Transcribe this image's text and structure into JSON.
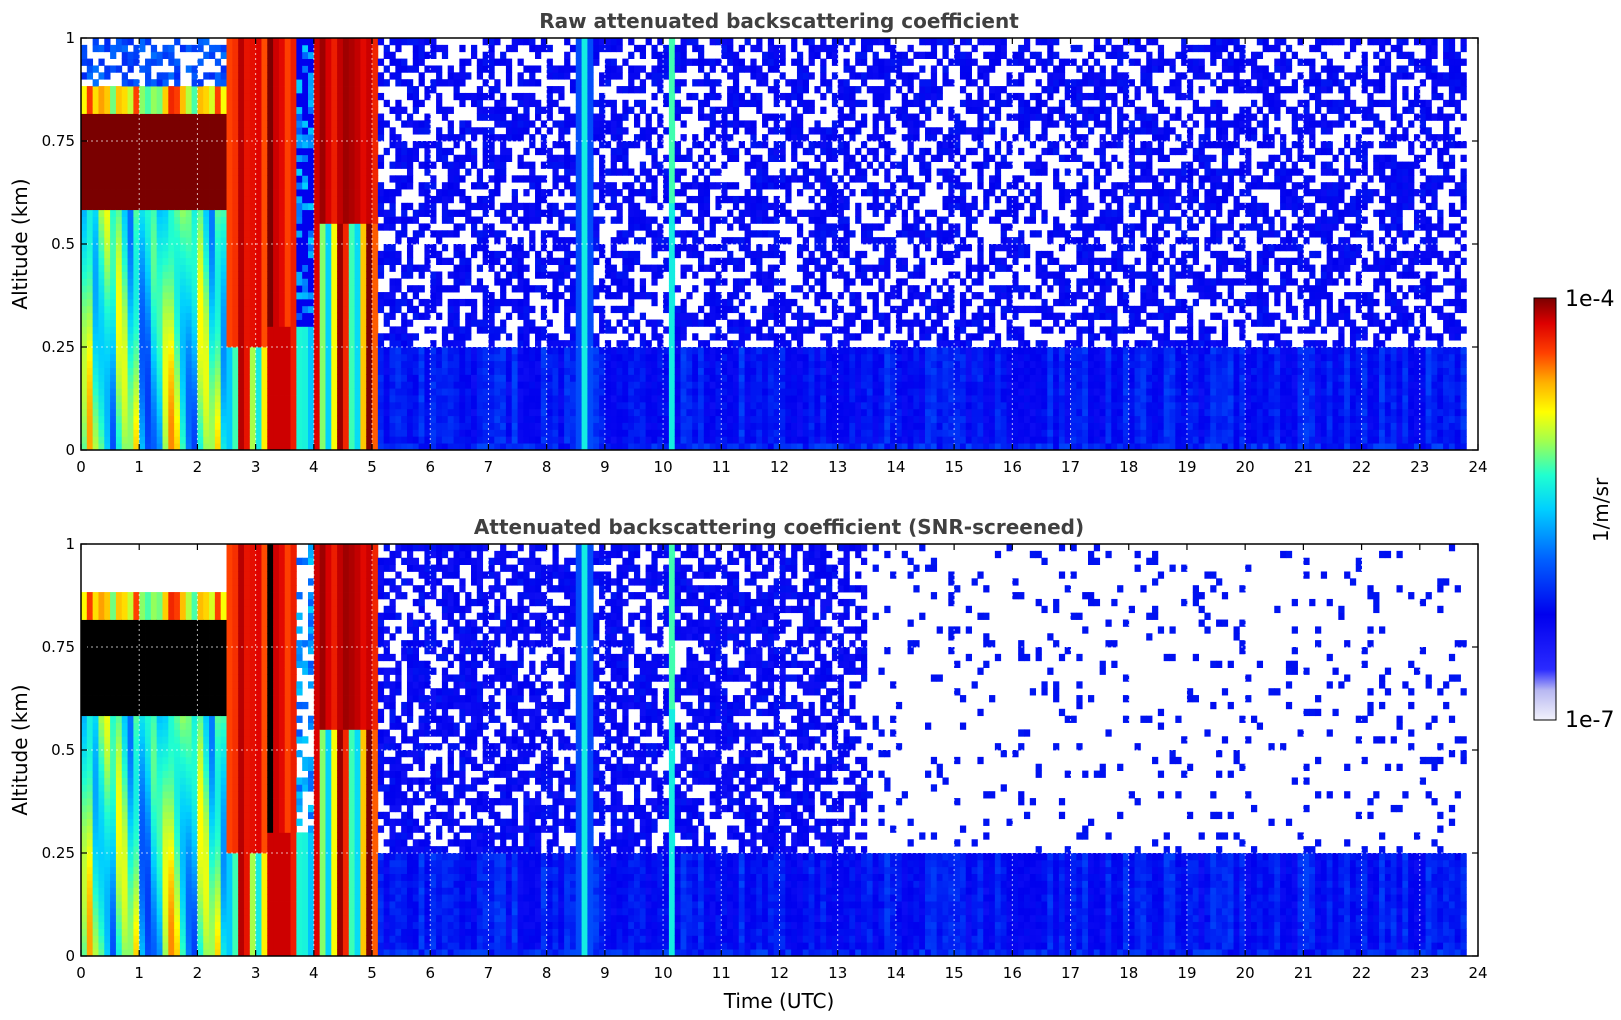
{
  "chart_data": [
    {
      "type": "heatmap",
      "title": "Raw attenuated backscattering coefficient",
      "xlabel": "",
      "ylabel": "Altitude (km)",
      "xlim": [
        0,
        24
      ],
      "ylim": [
        0,
        1
      ],
      "xticks": [
        "0",
        "1",
        "2",
        "3",
        "4",
        "5",
        "6",
        "7",
        "8",
        "9",
        "10",
        "11",
        "12",
        "13",
        "14",
        "15",
        "16",
        "17",
        "18",
        "19",
        "20",
        "21",
        "22",
        "23",
        "24"
      ],
      "yticks": [
        "0",
        "0.25",
        "0.5",
        "0.75",
        "1"
      ],
      "grid": true,
      "data_end_time": 23.8,
      "regions": [
        {
          "t0": 0,
          "t1": 2.5,
          "z0": 0.6,
          "z1": 0.8,
          "level": "saturated (>=1e-4)"
        },
        {
          "t0": 2.6,
          "t1": 3.6,
          "z0": 0.0,
          "z1": 1.0,
          "level": "high (~3e-5 to 1e-4)"
        },
        {
          "t0": 4.0,
          "t1": 5.1,
          "z0": 0.0,
          "z1": 1.0,
          "level": "high (~3e-5 to 1e-4)"
        },
        {
          "t0": 5.1,
          "t1": 23.8,
          "z0": 0.0,
          "z1": 0.25,
          "level": "low (~1e-6)"
        },
        {
          "t0": 10.0,
          "t1": 10.3,
          "z0": 0.0,
          "z1": 1.0,
          "level": "moderate (~1e-5)"
        }
      ]
    },
    {
      "type": "heatmap",
      "title": "Attenuated backscattering coefficient (SNR-screened)",
      "xlabel": "Time (UTC)",
      "ylabel": "Altitude (km)",
      "xlim": [
        0,
        24
      ],
      "ylim": [
        0,
        1
      ],
      "xticks": [
        "0",
        "1",
        "2",
        "3",
        "4",
        "5",
        "6",
        "7",
        "8",
        "9",
        "10",
        "11",
        "12",
        "13",
        "14",
        "15",
        "16",
        "17",
        "18",
        "19",
        "20",
        "21",
        "22",
        "23",
        "24"
      ],
      "yticks": [
        "0",
        "0.25",
        "0.5",
        "0.75",
        "1"
      ],
      "grid": true,
      "data_end_time": 23.8,
      "regions": [
        {
          "t0": 0,
          "t1": 2.5,
          "z0": 0.55,
          "z1": 0.8,
          "level": "saturated (>=1e-4)"
        },
        {
          "t0": 2.6,
          "t1": 3.6,
          "z0": 0.0,
          "z1": 1.0,
          "level": "high (~3e-5 to 1e-4)"
        },
        {
          "t0": 4.0,
          "t1": 5.1,
          "z0": 0.0,
          "z1": 1.0,
          "level": "high (~3e-5 to 1e-4)"
        },
        {
          "t0": 5.1,
          "t1": 23.8,
          "z0": 0.0,
          "z1": 0.25,
          "level": "low (~1e-6)"
        },
        {
          "t0": 13.5,
          "t1": 23.8,
          "z0": 0.25,
          "z1": 1.0,
          "level": "screened out (no data)"
        }
      ]
    }
  ],
  "colorbar": {
    "label": "1/m/sr",
    "min_label": "1e-7",
    "max_label": "1e-4",
    "scale": "log"
  }
}
